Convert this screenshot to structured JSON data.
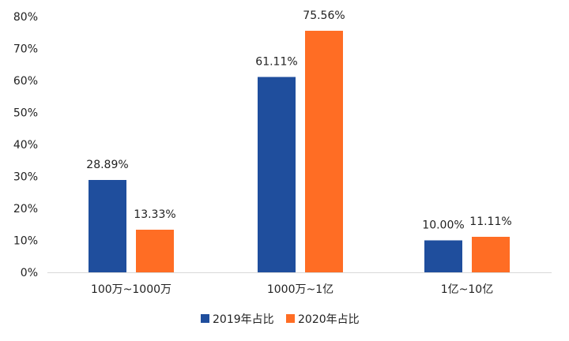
{
  "chart_data": {
    "type": "bar",
    "title": "",
    "xlabel": "",
    "ylabel": "",
    "ylim": [
      0,
      80
    ],
    "yticks": [
      "0%",
      "10%",
      "20%",
      "30%",
      "40%",
      "50%",
      "60%",
      "70%",
      "80%"
    ],
    "grid": false,
    "legend_position": "bottom",
    "categories": [
      "100万~1000万",
      "1000万~1亿",
      "1亿~10亿"
    ],
    "series": [
      {
        "name": "2019年占比",
        "color": "#1F4E9D",
        "values": [
          28.89,
          61.11,
          10.0
        ],
        "labels": [
          "28.89%",
          "61.11%",
          "10.00%"
        ]
      },
      {
        "name": "2020年占比",
        "color": "#FF6D24",
        "values": [
          13.33,
          75.56,
          11.11
        ],
        "labels": [
          "13.33%",
          "75.56%",
          "11.11%"
        ]
      }
    ]
  }
}
